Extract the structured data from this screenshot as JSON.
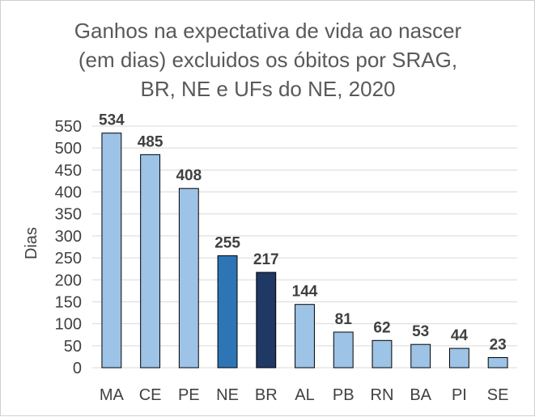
{
  "chart_data": {
    "type": "bar",
    "title_lines": [
      "Ganhos na expectativa de vida ao nascer",
      "(em dias) excluidos os óbitos por SRAG,",
      "BR, NE e UFs do NE, 2020"
    ],
    "xlabel": "",
    "ylabel": "Dias",
    "categories": [
      "MA",
      "CE",
      "PE",
      "NE",
      "BR",
      "AL",
      "PB",
      "RN",
      "BA",
      "PI",
      "SE"
    ],
    "values": [
      534,
      485,
      408,
      255,
      217,
      144,
      81,
      62,
      53,
      44,
      23
    ],
    "ylim": [
      0,
      550
    ],
    "yticks": [
      0,
      50,
      100,
      150,
      200,
      250,
      300,
      350,
      400,
      450,
      500,
      550
    ],
    "grid": true,
    "legend": "none",
    "data_labels": true,
    "colors": {
      "default": "#9dc3e6",
      "NE": "#2e75b6",
      "BR": "#1f3864"
    }
  }
}
